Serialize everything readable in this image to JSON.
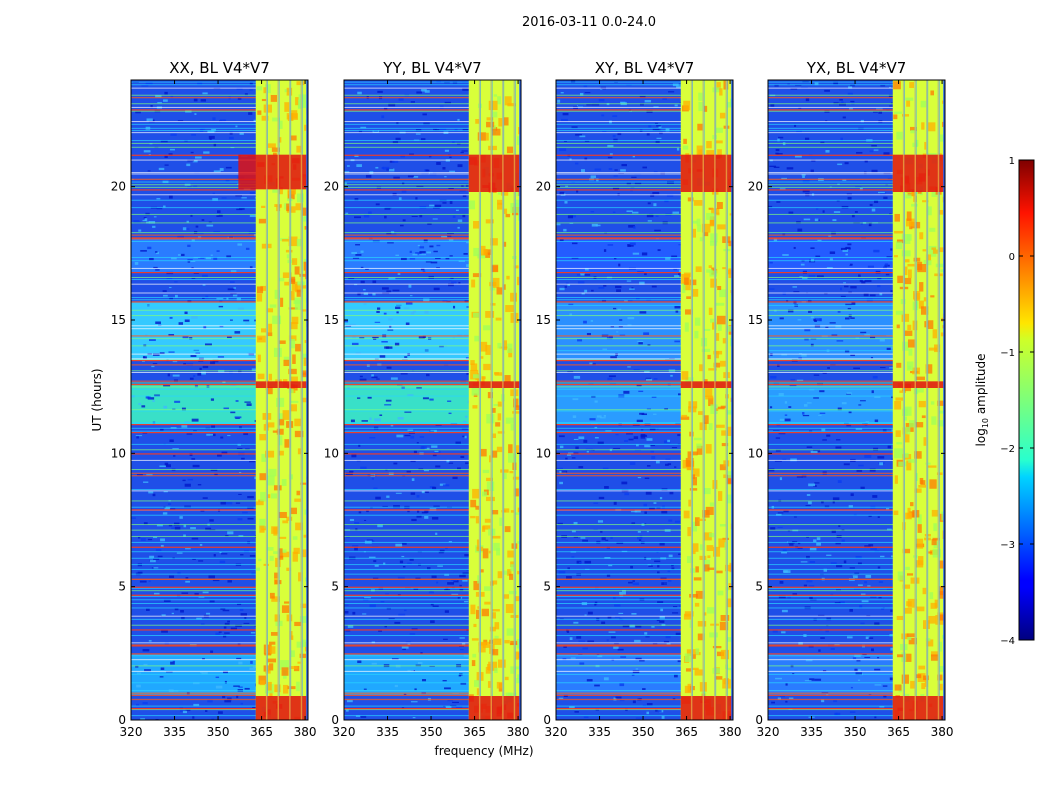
{
  "chart_data": {
    "type": "heatmap",
    "suptitle": "2016-03-11 0.0-24.0",
    "xlabel": "frequency (MHz)",
    "ylabel": "UT (hours)",
    "xlim": [
      320,
      381
    ],
    "ylim": [
      0,
      24
    ],
    "xticks": [
      320,
      335,
      350,
      365,
      380
    ],
    "xtick_labels": [
      "320",
      "335",
      "350",
      "365",
      "380"
    ],
    "yticks": [
      0,
      5,
      10,
      15,
      20
    ],
    "ytick_labels": [
      "0",
      "5",
      "10",
      "15",
      "20"
    ],
    "colormap": "jet",
    "colorbar": {
      "label_prefix": "log",
      "label_sub": "10",
      "label_suffix": " amplitude",
      "range": [
        -4,
        1
      ],
      "ticks": [
        1,
        0,
        -1,
        -2,
        -3,
        -4
      ],
      "tick_labels": [
        "1",
        "0",
        "−1",
        "−2",
        "−3",
        "−4"
      ]
    },
    "panels": [
      {
        "title": "XX, BL V4*V7",
        "rfi_band_mhz": [
          363,
          381
        ],
        "burst_hours": [
          19.9,
          21.2
        ],
        "burst_start_mhz": 357
      },
      {
        "title": "YY, BL V4*V7",
        "rfi_band_mhz": [
          363,
          381
        ],
        "burst_hours": [
          19.8,
          21.2
        ],
        "burst_start_mhz": 363
      },
      {
        "title": "XY, BL V4*V7",
        "rfi_band_mhz": [
          363,
          381
        ],
        "burst_hours": [
          19.8,
          21.2
        ],
        "burst_start_mhz": 363
      },
      {
        "title": "YX, BL V4*V7",
        "rfi_band_mhz": [
          363,
          381
        ],
        "burst_hours": [
          19.8,
          21.2
        ],
        "burst_start_mhz": 363
      }
    ]
  }
}
